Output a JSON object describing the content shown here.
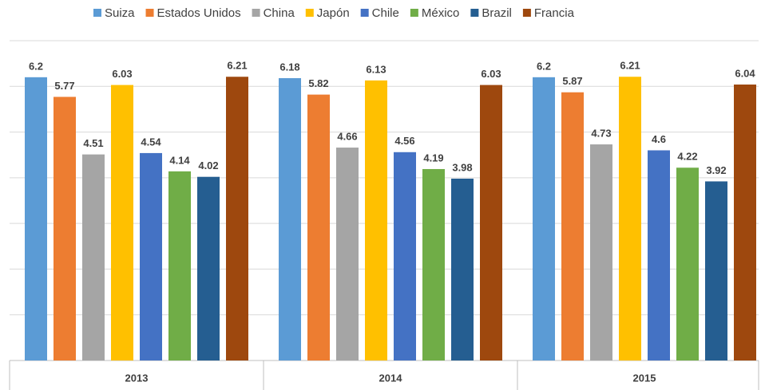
{
  "chart_data": {
    "type": "bar",
    "categories": [
      "2013",
      "2014",
      "2015"
    ],
    "series": [
      {
        "name": "Suiza",
        "color": "#5b9bd5",
        "values": [
          6.2,
          6.18,
          6.2
        ]
      },
      {
        "name": "Estados Unidos",
        "color": "#ed7d31",
        "values": [
          5.77,
          5.82,
          5.87
        ]
      },
      {
        "name": "China",
        "color": "#a5a5a5",
        "values": [
          4.51,
          4.66,
          4.73
        ]
      },
      {
        "name": "Japón",
        "color": "#ffc000",
        "values": [
          6.03,
          6.13,
          6.21
        ]
      },
      {
        "name": "Chile",
        "color": "#4472c4",
        "values": [
          4.54,
          4.56,
          4.6
        ]
      },
      {
        "name": "México",
        "color": "#70ad47",
        "values": [
          4.14,
          4.19,
          4.22
        ]
      },
      {
        "name": "Brazil",
        "color": "#255e91",
        "values": [
          4.02,
          3.98,
          3.92
        ]
      },
      {
        "name": "Francia",
        "color": "#9e480e",
        "values": [
          6.21,
          6.03,
          6.04
        ]
      }
    ],
    "ylim": [
      0,
      7
    ],
    "yticks": [
      0,
      1,
      2,
      3,
      4,
      5,
      6,
      7
    ],
    "grid": true,
    "legend": "top"
  }
}
